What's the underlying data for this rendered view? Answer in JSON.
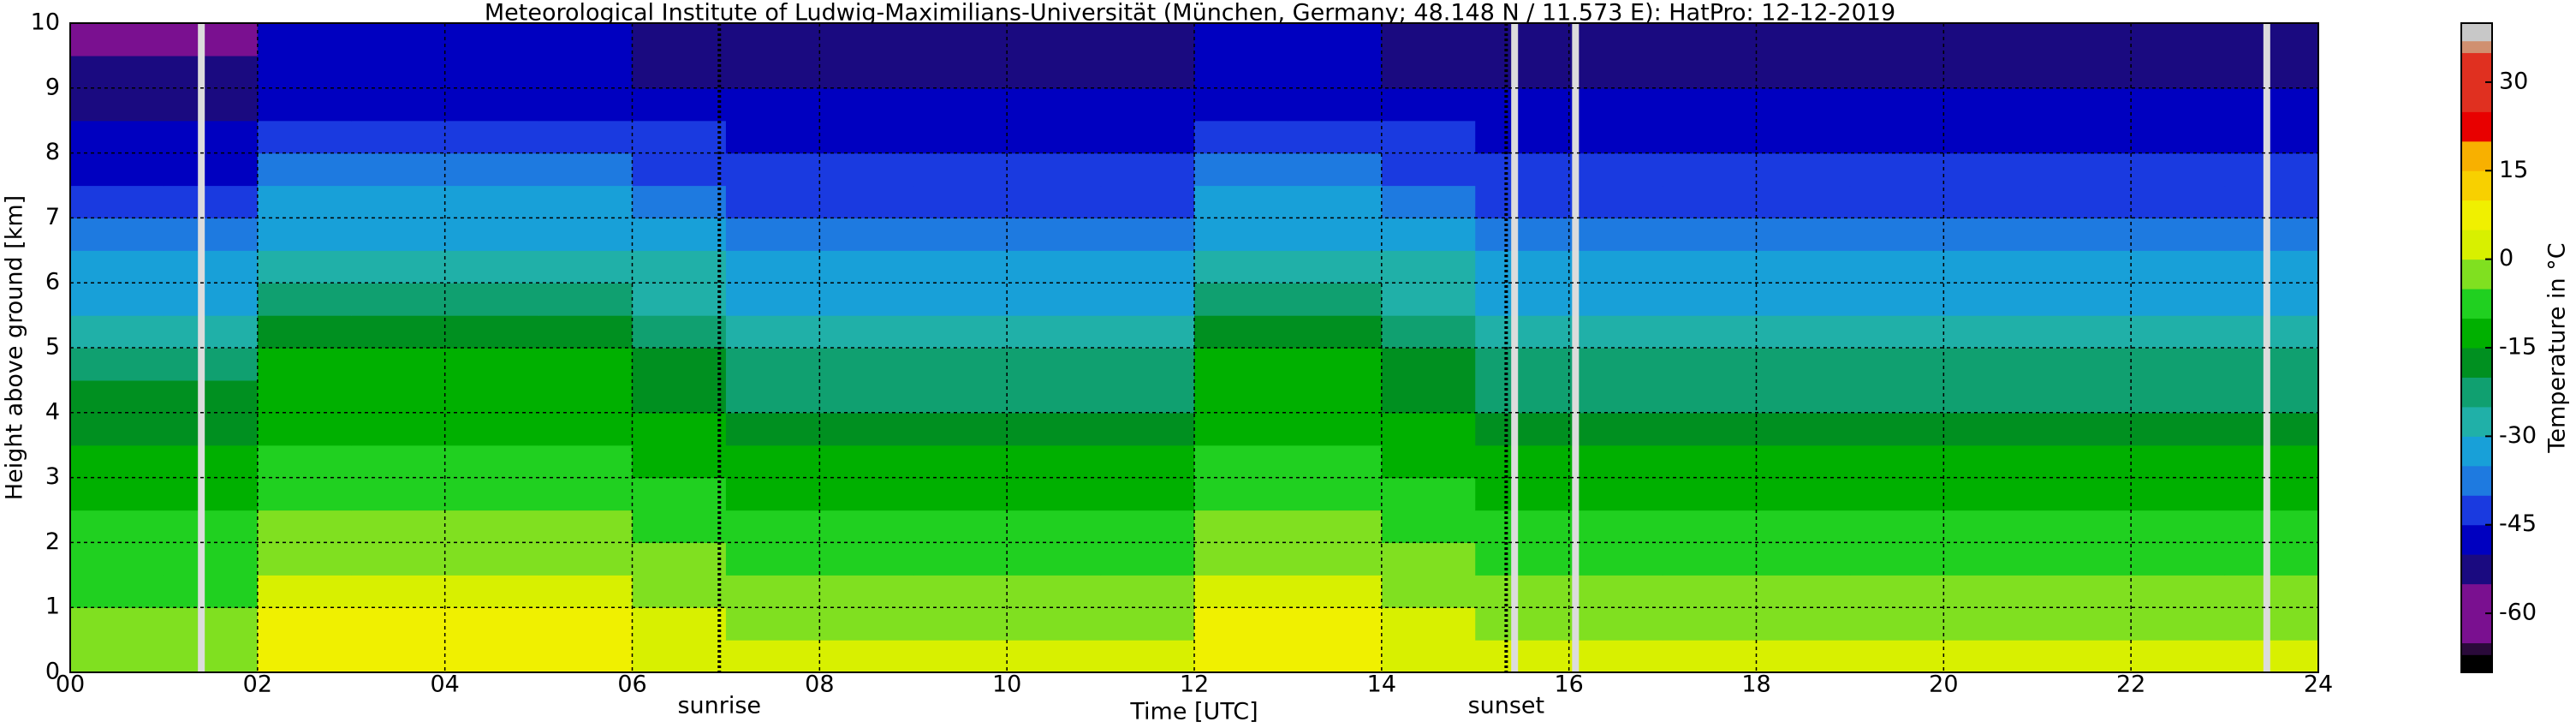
{
  "chart_data": {
    "type": "heatmap",
    "title": "Meteorological Institute of Ludwig-Maximilians-Universität (München, Germany; 48.148 N / 11.573 E):    HatPro: 12-12-2019",
    "x_label": "Time [UTC]",
    "y_label": "Height above ground [km]",
    "colorbar_label": "Temperature in °C",
    "x_bins": [
      0,
      1,
      2,
      3,
      4,
      5,
      6,
      7,
      8,
      9,
      10,
      11,
      12,
      13,
      14,
      15,
      16,
      17,
      18,
      19,
      20,
      21,
      22,
      23,
      24
    ],
    "y_bins": [
      0,
      0.5,
      1,
      1.5,
      2,
      2.5,
      3,
      3.5,
      4,
      4.5,
      5,
      5.5,
      6,
      6.5,
      7,
      7.5,
      8,
      8.5,
      9,
      9.5,
      10
    ],
    "values": [
      [
        -2,
        -2,
        6,
        6,
        6,
        6,
        3,
        1,
        1,
        1,
        1,
        1,
        6,
        6,
        3,
        1,
        1,
        1,
        1,
        1,
        1,
        1,
        1,
        1
      ],
      [
        -4,
        -4,
        5,
        5,
        5,
        5,
        1,
        -2,
        -2,
        -2,
        -2,
        -2,
        5,
        5,
        1,
        -2,
        -2,
        -2,
        -2,
        -2,
        -2,
        -2,
        -2,
        -2
      ],
      [
        -6,
        -6,
        3,
        3,
        3,
        3,
        -1,
        -4,
        -4,
        -4,
        -4,
        -4,
        3,
        3,
        -1,
        -4,
        -4,
        -4,
        -4,
        -4,
        -4,
        -4,
        -4,
        -4
      ],
      [
        -8,
        -8,
        -2,
        -2,
        -2,
        -2,
        -4,
        -6,
        -6,
        -6,
        -6,
        -6,
        -2,
        -2,
        -4,
        -6,
        -6,
        -6,
        -6,
        -6,
        -6,
        -6,
        -6,
        -6
      ],
      [
        -10,
        -10,
        -5,
        -5,
        -5,
        -5,
        -7,
        -9,
        -9,
        -9,
        -9,
        -9,
        -5,
        -5,
        -7,
        -9,
        -9,
        -9,
        -9,
        -9,
        -9,
        -9,
        -9,
        -9
      ],
      [
        -12,
        -12,
        -7,
        -7,
        -7,
        -7,
        -10,
        -12,
        -12,
        -12,
        -12,
        -12,
        -7,
        -7,
        -10,
        -12,
        -12,
        -12,
        -12,
        -12,
        -12,
        -12,
        -12,
        -12
      ],
      [
        -14,
        -14,
        -9,
        -9,
        -9,
        -9,
        -12,
        -15,
        -15,
        -15,
        -15,
        -15,
        -9,
        -9,
        -12,
        -15,
        -15,
        -15,
        -15,
        -15,
        -15,
        -15,
        -15,
        -15
      ],
      [
        -16,
        -16,
        -11,
        -11,
        -11,
        -11,
        -15,
        -18,
        -18,
        -18,
        -18,
        -18,
        -11,
        -11,
        -15,
        -18,
        -18,
        -18,
        -18,
        -18,
        -18,
        -18,
        -18,
        -18
      ],
      [
        -19,
        -19,
        -13,
        -13,
        -13,
        -13,
        -18,
        -22,
        -22,
        -22,
        -22,
        -22,
        -13,
        -13,
        -18,
        -22,
        -22,
        -22,
        -22,
        -22,
        -22,
        -22,
        -22,
        -22
      ],
      [
        -24,
        -24,
        -15,
        -15,
        -15,
        -15,
        -20,
        -25,
        -25,
        -25,
        -25,
        -25,
        -15,
        -15,
        -20,
        -25,
        -25,
        -25,
        -25,
        -25,
        -25,
        -25,
        -25,
        -25
      ],
      [
        -28,
        -28,
        -17,
        -17,
        -17,
        -17,
        -23,
        -28,
        -28,
        -28,
        -28,
        -28,
        -17,
        -17,
        -23,
        -28,
        -28,
        -28,
        -28,
        -28,
        -28,
        -28,
        -28,
        -28
      ],
      [
        -31,
        -31,
        -22,
        -22,
        -22,
        -22,
        -27,
        -31,
        -31,
        -31,
        -31,
        -31,
        -22,
        -22,
        -27,
        -31,
        -31,
        -31,
        -31,
        -31,
        -31,
        -31,
        -31,
        -31
      ],
      [
        -35,
        -35,
        -26,
        -26,
        -26,
        -26,
        -30,
        -34,
        -34,
        -34,
        -34,
        -34,
        -26,
        -26,
        -30,
        -34,
        -34,
        -34,
        -34,
        -34,
        -34,
        -34,
        -34,
        -34
      ],
      [
        -39,
        -39,
        -31,
        -31,
        -31,
        -31,
        -34,
        -37,
        -37,
        -37,
        -37,
        -37,
        -31,
        -31,
        -34,
        -37,
        -37,
        -37,
        -37,
        -37,
        -37,
        -37,
        -37,
        -37
      ],
      [
        -42,
        -42,
        -35,
        -35,
        -35,
        -35,
        -38,
        -41,
        -41,
        -41,
        -41,
        -41,
        -35,
        -35,
        -38,
        -41,
        -41,
        -41,
        -41,
        -41,
        -41,
        -41,
        -41,
        -41
      ],
      [
        -46,
        -46,
        -39,
        -39,
        -39,
        -39,
        -42,
        -45,
        -45,
        -45,
        -45,
        -45,
        -39,
        -39,
        -42,
        -45,
        -45,
        -45,
        -45,
        -45,
        -45,
        -45,
        -45,
        -45
      ],
      [
        -49,
        -49,
        -42,
        -42,
        -42,
        -42,
        -45,
        -48,
        -48,
        -48,
        -48,
        -48,
        -42,
        -42,
        -45,
        -48,
        -48,
        -48,
        -48,
        -48,
        -48,
        -48,
        -48,
        -48
      ],
      [
        -51,
        -51,
        -46,
        -46,
        -46,
        -46,
        -48,
        -50,
        -50,
        -50,
        -50,
        -50,
        -46,
        -46,
        -48,
        -50,
        -50,
        -50,
        -50,
        -50,
        -50,
        -50,
        -50,
        -50
      ],
      [
        -53,
        -54,
        -49,
        -49,
        -49,
        -49,
        -51,
        -52,
        -52,
        -52,
        -52,
        -52,
        -49,
        -49,
        -51,
        -52,
        -52,
        -52,
        -52,
        -52,
        -52,
        -52,
        -52,
        -52
      ],
      [
        -57,
        -58,
        -50,
        -50,
        -50,
        -50,
        -52,
        -53,
        -53,
        -53,
        -53,
        -53,
        -50,
        -50,
        -52,
        -53,
        -53,
        -53,
        -53,
        -53,
        -53,
        -53,
        -53,
        -53
      ]
    ],
    "xlim": [
      0,
      24
    ],
    "ylim": [
      0,
      10
    ],
    "xticks": [
      {
        "value": 0,
        "label": "00"
      },
      {
        "value": 2,
        "label": "02"
      },
      {
        "value": 4,
        "label": "04"
      },
      {
        "value": 6,
        "label": "06"
      },
      {
        "value": 8,
        "label": "08"
      },
      10,
      12,
      14,
      16,
      18,
      20,
      22,
      24
    ],
    "yticks": [
      0,
      1,
      2,
      3,
      4,
      5,
      6,
      7,
      8,
      9,
      10
    ],
    "clim": [
      -70,
      40
    ],
    "cticks": [
      -60,
      -45,
      -30,
      -15,
      0,
      15,
      30
    ],
    "colormap": {
      "bounds": [
        -70,
        -67,
        -65,
        -55,
        -50,
        -45,
        -40,
        -35,
        -30,
        -25,
        -20,
        -15,
        -10,
        -5,
        0,
        5,
        10,
        15,
        20,
        25,
        35,
        37,
        40
      ],
      "colors": [
        "#000000",
        "#2a0a3a",
        "#7a1090",
        "#1a0a80",
        "#0000c0",
        "#1a3ae0",
        "#1e7ae0",
        "#18a0d8",
        "#20b0a8",
        "#10a070",
        "#009020",
        "#00b000",
        "#20d020",
        "#80e020",
        "#d8f000",
        "#f0f000",
        "#f8d000",
        "#f8b000",
        "#e80000",
        "#e03020",
        "#d09070",
        "#c8c8c8"
      ]
    },
    "gaps": [
      1.4,
      15.42,
      16.07,
      23.45
    ],
    "annotations": [
      {
        "text": "sunrise",
        "x": 6.93
      },
      {
        "text": "sunset",
        "x": 15.33
      }
    ],
    "grid": true
  }
}
